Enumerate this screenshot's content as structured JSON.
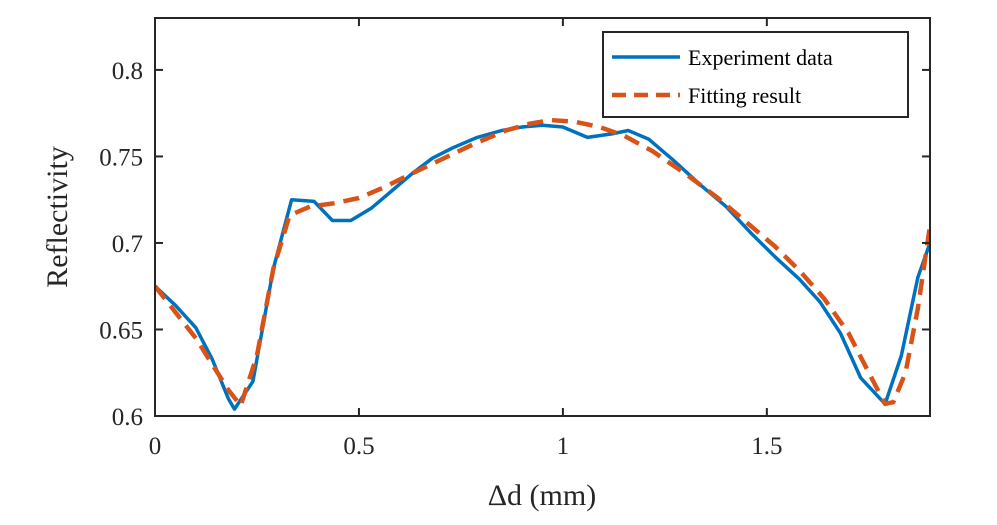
{
  "chart_data": {
    "type": "line",
    "xlabel": "Δd (mm)",
    "ylabel": "Reflectivity",
    "xlim": [
      0,
      1.9
    ],
    "ylim": [
      0.6,
      0.83
    ],
    "xticks": [
      0,
      0.5,
      1,
      1.5
    ],
    "xtick_labels": [
      "0",
      "0.5",
      "1",
      "1.5"
    ],
    "yticks": [
      0.6,
      0.65,
      0.7,
      0.75,
      0.8
    ],
    "ytick_labels": [
      "0.6",
      "0.65",
      "0.7",
      "0.75",
      "0.8"
    ],
    "grid": false,
    "legend_position": "top-right",
    "series": [
      {
        "name": "Experiment data",
        "color": "#0072BD",
        "style": "solid",
        "x": [
          0,
          0.05,
          0.1,
          0.14,
          0.18,
          0.195,
          0.24,
          0.29,
          0.335,
          0.39,
          0.435,
          0.48,
          0.53,
          0.58,
          0.63,
          0.68,
          0.73,
          0.79,
          0.85,
          0.9,
          0.95,
          1.0,
          1.06,
          1.12,
          1.16,
          1.21,
          1.27,
          1.34,
          1.4,
          1.46,
          1.52,
          1.58,
          1.63,
          1.68,
          1.73,
          1.79,
          1.83,
          1.87,
          1.9
        ],
        "y": [
          0.675,
          0.664,
          0.651,
          0.633,
          0.61,
          0.604,
          0.62,
          0.685,
          0.725,
          0.724,
          0.713,
          0.713,
          0.72,
          0.73,
          0.74,
          0.749,
          0.755,
          0.761,
          0.765,
          0.767,
          0.768,
          0.767,
          0.761,
          0.763,
          0.765,
          0.76,
          0.748,
          0.733,
          0.721,
          0.706,
          0.692,
          0.679,
          0.666,
          0.648,
          0.622,
          0.607,
          0.635,
          0.68,
          0.7
        ]
      },
      {
        "name": "Fitting result",
        "color": "#D95319",
        "style": "dashed",
        "x": [
          0,
          0.05,
          0.1,
          0.14,
          0.18,
          0.21,
          0.25,
          0.29,
          0.33,
          0.38,
          0.44,
          0.5,
          0.56,
          0.62,
          0.7,
          0.78,
          0.86,
          0.92,
          0.97,
          1.03,
          1.09,
          1.15,
          1.22,
          1.3,
          1.38,
          1.45,
          1.52,
          1.58,
          1.64,
          1.7,
          1.75,
          1.79,
          1.81,
          1.84,
          1.87,
          1.9
        ],
        "y": [
          0.675,
          0.66,
          0.645,
          0.63,
          0.615,
          0.606,
          0.635,
          0.685,
          0.716,
          0.721,
          0.723,
          0.726,
          0.732,
          0.739,
          0.748,
          0.757,
          0.765,
          0.769,
          0.771,
          0.77,
          0.767,
          0.762,
          0.753,
          0.74,
          0.726,
          0.712,
          0.698,
          0.684,
          0.668,
          0.648,
          0.625,
          0.607,
          0.608,
          0.625,
          0.662,
          0.71
        ]
      }
    ]
  }
}
